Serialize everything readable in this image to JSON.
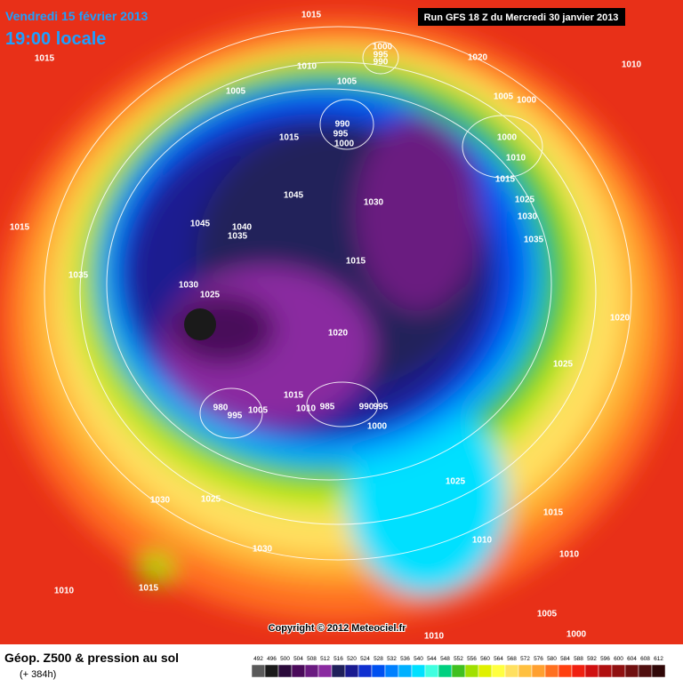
{
  "header": {
    "date": "Vendredi 15 février 2013",
    "time": "19:00 locale",
    "run": "Run GFS 18 Z du Mercredi 30 janvier 2013"
  },
  "footer": {
    "title": "Géop. Z500 & pression au sol",
    "lead": "(+ 384h)",
    "copyright": "Copyright © 2012 Meteociel.fr"
  },
  "legend": {
    "values": [
      492,
      496,
      500,
      504,
      508,
      512,
      516,
      520,
      524,
      528,
      532,
      536,
      540,
      544,
      548,
      552,
      556,
      560,
      564,
      568,
      572,
      576,
      580,
      584,
      588,
      592,
      596,
      600,
      604,
      608,
      612
    ],
    "colors": [
      "#5a5a5a",
      "#1a1a1a",
      "#2a0a3a",
      "#4a0a5a",
      "#6a1a80",
      "#8a2aa0",
      "#20205a",
      "#1a1a90",
      "#1030d0",
      "#0050f0",
      "#0080ff",
      "#00b0ff",
      "#00e0ff",
      "#40ffe0",
      "#00d080",
      "#40c020",
      "#a0e000",
      "#e0f000",
      "#ffff40",
      "#ffe060",
      "#ffc040",
      "#ffa030",
      "#ff7020",
      "#ff4010",
      "#f02010",
      "#d01010",
      "#b01010",
      "#901010",
      "#701010",
      "#501010",
      "#300808"
    ]
  },
  "isobar_labels": [
    1015,
    1015,
    1010,
    1000,
    995,
    990,
    1020,
    1010,
    1005,
    1005,
    1005,
    1000,
    990,
    995,
    1000,
    1000,
    1015,
    1010,
    1015,
    1045,
    1030,
    1025,
    1030,
    1045,
    1040,
    1035,
    1015,
    1035,
    1015,
    1035,
    1030,
    1025,
    1020,
    1020,
    1025,
    1015,
    980,
    995,
    1005,
    1010,
    985,
    990,
    995,
    1000,
    1025,
    1030,
    1025,
    1015,
    1010,
    1030,
    1010,
    1015,
    1010,
    1005,
    1000,
    1010
  ]
}
